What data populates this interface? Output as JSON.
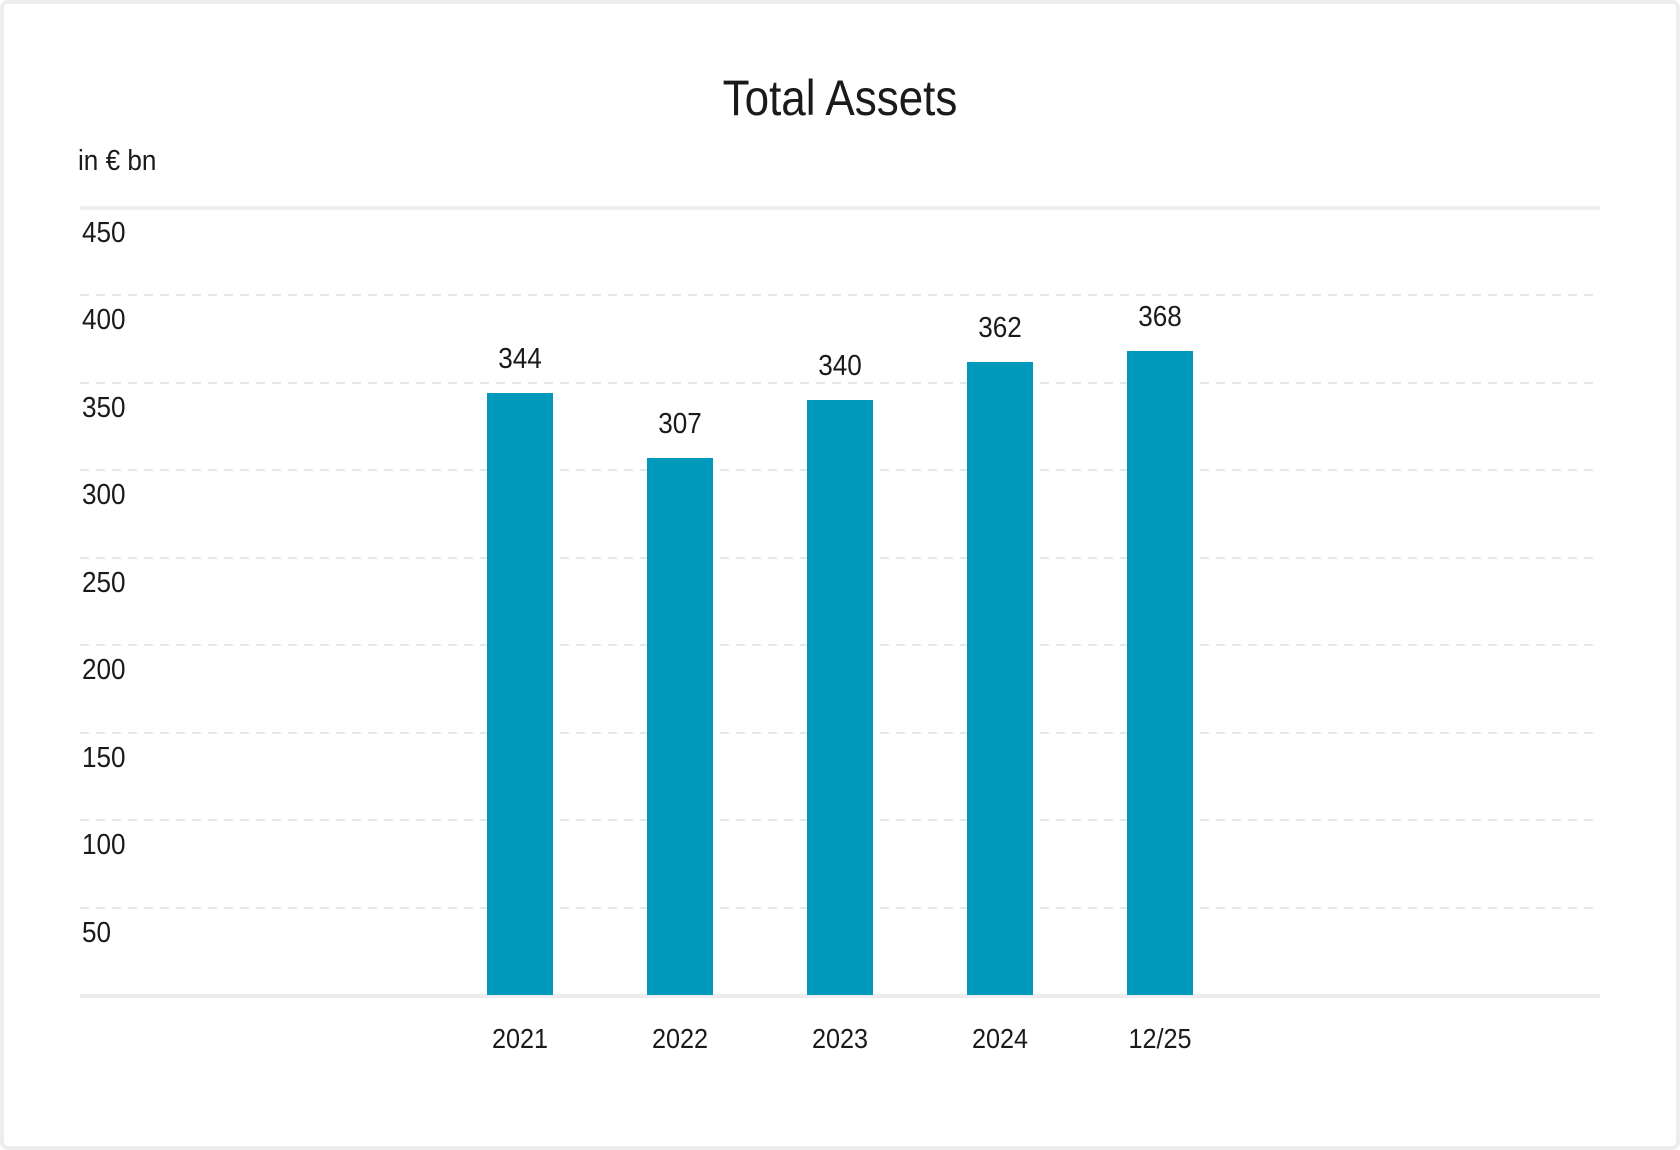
{
  "chart": {
    "title": "Total Assets",
    "unit": "in € bn"
  },
  "colors": {
    "bar": "#0099bc",
    "grid_dashed": "#e7e8e9",
    "grid_solid": "#edeef0",
    "text": "#1a1a1a",
    "card_border": "#ebedee",
    "background": "#ffffff"
  },
  "chart_data": {
    "type": "bar",
    "title": "Total Assets",
    "xlabel": "",
    "ylabel": "in € bn",
    "categories": [
      "2021",
      "2022",
      "2023",
      "2024",
      "12/25"
    ],
    "values": [
      344,
      307,
      340,
      362,
      368
    ],
    "value_labels": [
      "344",
      "307",
      "340",
      "362",
      "368"
    ],
    "ylim": [
      0,
      450
    ],
    "ytick_step": 50,
    "yticks": [
      450,
      400,
      350,
      300,
      250,
      200,
      150,
      100,
      50
    ],
    "grid": "horizontal, dashed; solid line at top tick and baseline; y tick labels placed below their lines",
    "legend": "none",
    "bar_color": "#0099bc"
  }
}
